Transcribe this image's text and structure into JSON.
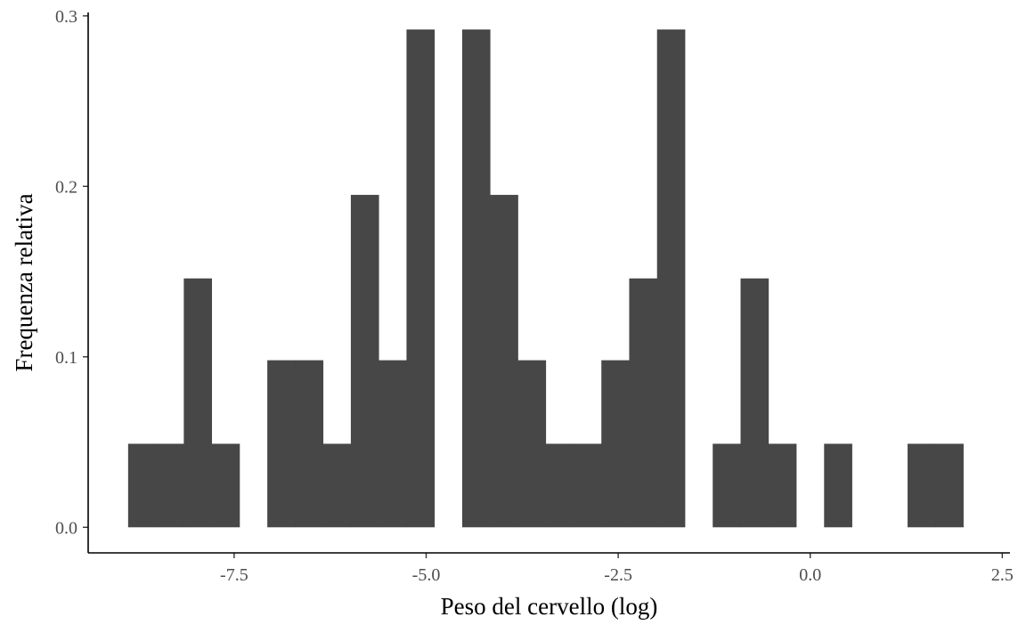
{
  "chart_data": {
    "type": "bar",
    "title": "",
    "xlabel": "Peso del cervello (log)",
    "ylabel": "Frequenza relativa",
    "xlim": [
      -9.4,
      2.6
    ],
    "ylim": [
      -0.015,
      0.302
    ],
    "xticks": [
      -7.5,
      -5.0,
      -2.5,
      0.0,
      2.5
    ],
    "xtick_labels": [
      "-7.5",
      "-5.0",
      "-2.5",
      "0.0",
      "2.5"
    ],
    "yticks": [
      0.0,
      0.1,
      0.2,
      0.3
    ],
    "ytick_labels": [
      "0.0",
      "0.1",
      "0.2",
      "0.3"
    ],
    "bin_width": 0.3624,
    "bin_start": -8.88,
    "values": [
      0.049,
      0.049,
      0.146,
      0.049,
      0,
      0.098,
      0.098,
      0.049,
      0.195,
      0.098,
      0.292,
      0,
      0.292,
      0.195,
      0.098,
      0.049,
      0.049,
      0.098,
      0.146,
      0.292,
      0,
      0.049,
      0.146,
      0.049,
      0,
      0.049,
      0,
      0,
      0.049,
      0.049
    ],
    "bar_color": "#474747",
    "grid": false,
    "legend": "none"
  }
}
